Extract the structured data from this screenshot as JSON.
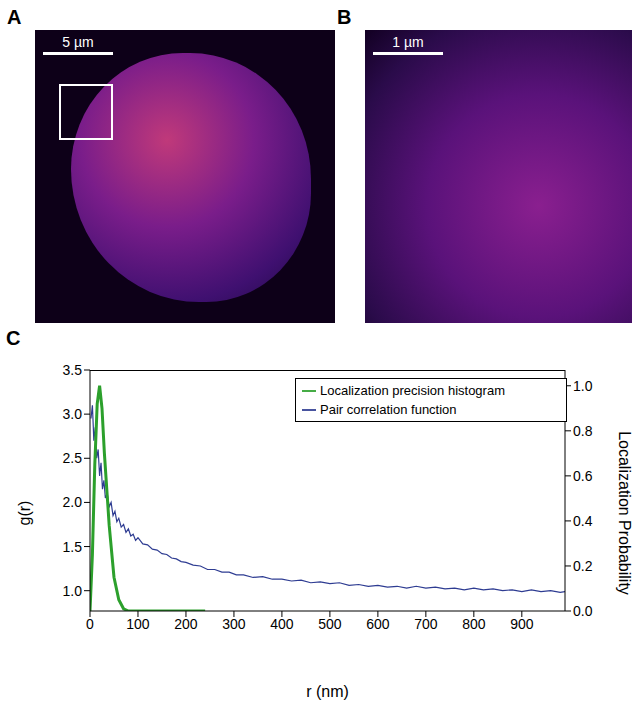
{
  "images": [
    {
      "label": "A",
      "scale_bar": "5 µm"
    },
    {
      "label": "B",
      "scale_bar": "1 µm"
    }
  ],
  "chart_data": {
    "label": "C",
    "type": "line",
    "x_label": "r (nm)",
    "y_label": "g(r)",
    "y2_label": "Localization Probability",
    "xlim": [
      0,
      990
    ],
    "xticks": [
      0,
      100,
      200,
      300,
      400,
      500,
      600,
      700,
      800,
      900
    ],
    "ylim": [
      0.77,
      3.5
    ],
    "yticks": [
      {
        "value": 1,
        "label": "1.0"
      },
      {
        "value": 1.5,
        "label": "1.5"
      },
      {
        "value": 2,
        "label": "2.0"
      },
      {
        "value": 2.5,
        "label": "2.5"
      },
      {
        "value": 3,
        "label": "3.0"
      },
      {
        "value": 3.5,
        "label": "3.5"
      }
    ],
    "y2lim": [
      0,
      1.07
    ],
    "y2ticks": [
      {
        "value": 0,
        "label": "0.0"
      },
      {
        "value": 0.2,
        "label": "0.2"
      },
      {
        "value": 0.4,
        "label": "0.4"
      },
      {
        "value": 0.6,
        "label": "0.6"
      },
      {
        "value": 0.8,
        "label": "0.8"
      },
      {
        "value": 1,
        "label": "1.0"
      }
    ],
    "legend": "top right",
    "series": [
      {
        "name": "Pair correlation function",
        "color": "#2e3c92",
        "axis": "y",
        "x": [
          2,
          5,
          8,
          11,
          14,
          17,
          20,
          23,
          26,
          29,
          32,
          36,
          40,
          44,
          48,
          52,
          56,
          60,
          65,
          70,
          75,
          80,
          85,
          90,
          95,
          100,
          110,
          120,
          130,
          140,
          150,
          160,
          170,
          180,
          190,
          200,
          215,
          230,
          245,
          260,
          275,
          290,
          305,
          320,
          340,
          360,
          380,
          400,
          420,
          440,
          460,
          480,
          500,
          520,
          540,
          560,
          580,
          600,
          620,
          640,
          660,
          680,
          700,
          720,
          740,
          760,
          780,
          800,
          820,
          840,
          860,
          880,
          900,
          920,
          940,
          960,
          980,
          990
        ],
        "values": [
          2.95,
          3.1,
          2.7,
          2.85,
          2.5,
          2.6,
          2.3,
          2.45,
          2.15,
          2.25,
          2.05,
          2.1,
          1.95,
          2.0,
          1.85,
          1.9,
          1.78,
          1.82,
          1.72,
          1.75,
          1.66,
          1.7,
          1.62,
          1.64,
          1.57,
          1.6,
          1.53,
          1.52,
          1.47,
          1.46,
          1.42,
          1.41,
          1.37,
          1.36,
          1.33,
          1.32,
          1.29,
          1.28,
          1.24,
          1.24,
          1.21,
          1.21,
          1.18,
          1.18,
          1.15,
          1.16,
          1.13,
          1.13,
          1.11,
          1.12,
          1.09,
          1.1,
          1.08,
          1.09,
          1.06,
          1.07,
          1.05,
          1.06,
          1.04,
          1.05,
          1.03,
          1.05,
          1.03,
          1.04,
          1.02,
          1.03,
          1.01,
          1.03,
          1.01,
          1.02,
          1.0,
          1.01,
          0.99,
          1.01,
          0.99,
          1.0,
          0.98,
          0.99
        ]
      },
      {
        "name": "Localization precision histogram",
        "color": "#2ca02c",
        "axis": "y2",
        "x": [
          0,
          5,
          10,
          15,
          20,
          25,
          30,
          40,
          50,
          60,
          70,
          80,
          240
        ],
        "values": [
          0,
          0.25,
          0.65,
          0.92,
          1.0,
          0.9,
          0.7,
          0.38,
          0.15,
          0.05,
          0.01,
          0,
          0
        ]
      }
    ]
  }
}
